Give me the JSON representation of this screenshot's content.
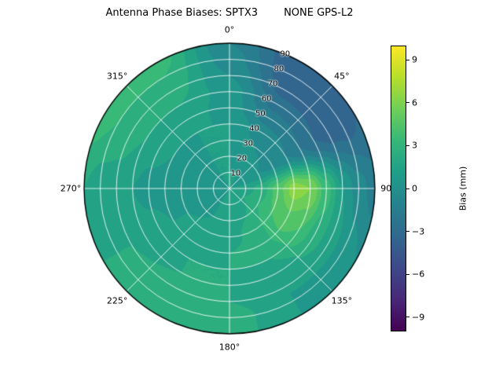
{
  "title": "Antenna Phase Biases: SPTX3        NONE GPS-L2",
  "polar_axis": {
    "angular_tick_labels": [
      {
        "angle": 0,
        "label": "0°"
      },
      {
        "angle": 45,
        "label": "45°"
      },
      {
        "angle": 90,
        "label": "90°"
      },
      {
        "angle": 135,
        "label": "135°"
      },
      {
        "angle": 180,
        "label": "180°"
      },
      {
        "angle": 225,
        "label": "225°"
      },
      {
        "angle": 270,
        "label": "270°"
      },
      {
        "angle": 315,
        "label": "315°"
      }
    ],
    "radial_tick_labels": [
      "10",
      "20",
      "30",
      "40",
      "50",
      "60",
      "70",
      "80",
      "90"
    ],
    "radial_label_angle_deg": 22.5,
    "r_max": 90
  },
  "colorbar": {
    "label": "Bias (mm)",
    "vmin": -10,
    "vmax": 10,
    "ticks": [
      {
        "value": 9,
        "label": "9"
      },
      {
        "value": 6,
        "label": "6"
      },
      {
        "value": 3,
        "label": "3"
      },
      {
        "value": 0,
        "label": "0"
      },
      {
        "value": -3,
        "label": "−3"
      },
      {
        "value": -6,
        "label": "−6"
      },
      {
        "value": -9,
        "label": "−9"
      }
    ]
  },
  "colormap": {
    "name": "viridis",
    "stops": [
      "#440154",
      "#482878",
      "#3e4989",
      "#31688e",
      "#26828e",
      "#1f9e89",
      "#35b779",
      "#6ece58",
      "#b5de2b",
      "#fde725"
    ]
  },
  "chart_data": {
    "type": "heatmap",
    "projection": "polar",
    "title": "Antenna Phase Biases: SPTX3        NONE GPS-L2",
    "colorbar_label": "Bias (mm)",
    "value_units": "mm",
    "value_range": [
      -10,
      10
    ],
    "level_step": 1,
    "angle_convention": "clockwise-from-north",
    "azimuth_deg": [
      0,
      30,
      60,
      90,
      120,
      150,
      180,
      210,
      240,
      270,
      300,
      330
    ],
    "zenith_deg": [
      0,
      10,
      20,
      30,
      40,
      50,
      60,
      70,
      80,
      90
    ],
    "values_mm": [
      [
        1,
        1,
        1,
        1,
        1,
        0.5,
        0.5,
        0,
        -0.5,
        -1
      ],
      [
        1,
        1,
        0.5,
        0,
        -0.5,
        -1.5,
        -2.5,
        -3.5,
        -4,
        -4
      ],
      [
        1,
        0.5,
        0,
        -0.5,
        -1,
        -2,
        -3,
        -3.5,
        -3.5,
        -3
      ],
      [
        1,
        1.5,
        2.5,
        4.5,
        6.5,
        6,
        3.5,
        1,
        -0.5,
        -1.5
      ],
      [
        1,
        2,
        3,
        4,
        4.5,
        4,
        2.5,
        1.5,
        0.5,
        0
      ],
      [
        1,
        1.5,
        2,
        2.5,
        2.5,
        2,
        1.5,
        1,
        1,
        1
      ],
      [
        1,
        1,
        1.5,
        1.5,
        2,
        2,
        2,
        2,
        2.5,
        2.5
      ],
      [
        1,
        1,
        1,
        1.5,
        1.5,
        2,
        2,
        2.5,
        2.5,
        2.5
      ],
      [
        1,
        0.5,
        0.5,
        1,
        1,
        1.5,
        1.5,
        2,
        2,
        2
      ],
      [
        1,
        0.5,
        0,
        0,
        0.5,
        0.5,
        1,
        1.5,
        1.5,
        2
      ],
      [
        1,
        0.5,
        0.5,
        0.5,
        1,
        1.5,
        2,
        2.5,
        3,
        3.5
      ],
      [
        1,
        1,
        1,
        1,
        1,
        1.5,
        2,
        2.5,
        3,
        3.5
      ]
    ]
  }
}
